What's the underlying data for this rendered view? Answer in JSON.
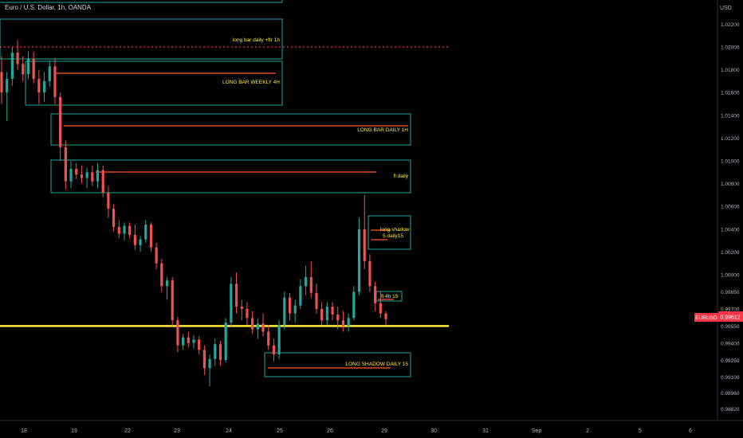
{
  "header": {
    "title": "Euro / U.S. Dollar, 1h, OANDA"
  },
  "chart_data": {
    "type": "candlestick",
    "symbol": "EURUSD",
    "last_price": 0.99612,
    "price_axis": {
      "unit": "USD",
      "ticks": [
        "1.02200",
        "1.02000",
        "1.01800",
        "1.01600",
        "1.01400",
        "1.01200",
        "1.01000",
        "1.00800",
        "1.00600",
        "1.00400",
        "1.00200",
        "1.00000",
        "0.99850",
        "0.99700",
        "0.99550",
        "0.99400",
        "0.99250",
        "0.99100",
        "0.98960",
        "0.98820"
      ]
    },
    "time_axis": {
      "labels": [
        "18",
        "19",
        "22",
        "23",
        "24",
        "25",
        "26",
        "29",
        "30",
        "31",
        "Sep",
        "2",
        "5",
        "6"
      ]
    },
    "zones": [
      {
        "label": "long bar daily +ftr 1h",
        "color": "#26a69a"
      },
      {
        "label": "LONG BAR WEEKLY 4H",
        "color": "#26a69a"
      },
      {
        "label": "LONG BAR DAILY 1H",
        "color": "#26a69a"
      },
      {
        "label": "fl daily",
        "color": "#26a69a"
      },
      {
        "label": "long shadow\n5    daily15",
        "color": "#26a69a"
      },
      {
        "label": "fl 4h 15",
        "color": "#26a69a"
      },
      {
        "label": "LONG SHADOW DAILY 15",
        "color": "#26a69a"
      }
    ],
    "support_line": {
      "price": 0.9955,
      "color": "#ffeb3b"
    },
    "resistance_dotted": {
      "price": 1.02,
      "color": "#f23645"
    },
    "colors": {
      "up": "#26a69a",
      "down": "#ef5350",
      "level": "#ff5722",
      "price_tag": "#f23645"
    },
    "candles": [
      [
        1.0178,
        1.0192,
        1.015,
        1.016
      ],
      [
        1.016,
        1.0178,
        1.0135,
        1.0172
      ],
      [
        1.0172,
        1.02,
        1.0166,
        1.0195
      ],
      [
        1.0195,
        1.0206,
        1.018,
        1.0185
      ],
      [
        1.0185,
        1.0192,
        1.017,
        1.0176
      ],
      [
        1.0176,
        1.0196,
        1.0172,
        1.019
      ],
      [
        1.019,
        1.0196,
        1.0168,
        1.0172
      ],
      [
        1.0172,
        1.018,
        1.015,
        1.016
      ],
      [
        1.016,
        1.0178,
        1.0152,
        1.017
      ],
      [
        1.017,
        1.0188,
        1.0165,
        1.0183
      ],
      [
        1.0183,
        1.019,
        1.015,
        1.0156
      ],
      [
        1.0156,
        1.016,
        1.01,
        1.0112
      ],
      [
        1.0112,
        1.0118,
        1.0075,
        1.0082
      ],
      [
        1.0082,
        1.01,
        1.0076,
        1.0093
      ],
      [
        1.0093,
        1.0098,
        1.0084,
        1.0088
      ],
      [
        1.0088,
        1.0096,
        1.008,
        1.0085
      ],
      [
        1.0085,
        1.0094,
        1.0076,
        1.009
      ],
      [
        1.009,
        1.0096,
        1.0078,
        1.0082
      ],
      [
        1.0082,
        1.0098,
        1.0076,
        1.0092
      ],
      [
        1.0092,
        1.0096,
        1.0068,
        1.0072
      ],
      [
        1.0072,
        1.0078,
        1.005,
        1.0058
      ],
      [
        1.0058,
        1.0062,
        1.0038,
        1.0042
      ],
      [
        1.0042,
        1.0048,
        1.0032,
        1.0036
      ],
      [
        1.0036,
        1.0046,
        1.003,
        1.0043
      ],
      [
        1.0043,
        1.0046,
        1.0032,
        1.0035
      ],
      [
        1.0035,
        1.0044,
        1.0022,
        1.0026
      ],
      [
        1.0026,
        1.0034,
        1.002,
        1.0031
      ],
      [
        1.0031,
        1.0048,
        1.0028,
        1.0044
      ],
      [
        1.0044,
        1.0046,
        1.002,
        1.0024
      ],
      [
        1.0024,
        1.0028,
        1.0005,
        1.001
      ],
      [
        1.001,
        1.0014,
        0.9985,
        0.999
      ],
      [
        0.999,
        0.9998,
        0.9978,
        0.9995
      ],
      [
        0.9995,
        0.9998,
        0.9955,
        0.996
      ],
      [
        0.996,
        0.9963,
        0.9932,
        0.9938
      ],
      [
        0.9938,
        0.9948,
        0.9934,
        0.9945
      ],
      [
        0.9945,
        0.995,
        0.9936,
        0.994
      ],
      [
        0.994,
        0.9947,
        0.9935,
        0.9943
      ],
      [
        0.9943,
        0.9946,
        0.993,
        0.9934
      ],
      [
        0.9934,
        0.9938,
        0.9912,
        0.9918
      ],
      [
        0.9918,
        0.993,
        0.9902,
        0.9926
      ],
      [
        0.9926,
        0.9944,
        0.992,
        0.9939
      ],
      [
        0.9939,
        0.9942,
        0.992,
        0.9925
      ],
      [
        0.9925,
        0.9962,
        0.9923,
        0.9958
      ],
      [
        0.9958,
        0.9998,
        0.9955,
        0.9992
      ],
      [
        0.9992,
        1.0002,
        0.9966,
        0.9972
      ],
      [
        0.9972,
        0.9978,
        0.996,
        0.997
      ],
      [
        0.997,
        0.9976,
        0.9956,
        0.9962
      ],
      [
        0.9962,
        0.9968,
        0.9948,
        0.9952
      ],
      [
        0.9952,
        0.9962,
        0.9944,
        0.9957
      ],
      [
        0.9957,
        0.9966,
        0.9946,
        0.995
      ],
      [
        0.995,
        0.9956,
        0.9934,
        0.9938
      ],
      [
        0.9938,
        0.9944,
        0.9924,
        0.993
      ],
      [
        0.993,
        0.996,
        0.9926,
        0.9956
      ],
      [
        0.9956,
        0.9985,
        0.9952,
        0.998
      ],
      [
        0.998,
        0.9984,
        0.996,
        0.9966
      ],
      [
        0.9966,
        0.9978,
        0.9958,
        0.9973
      ],
      [
        0.9973,
        0.9996,
        0.997,
        0.999
      ],
      [
        0.999,
        1.0008,
        0.9982,
        0.9998
      ],
      [
        0.9998,
        1.0012,
        0.998,
        0.9984
      ],
      [
        0.9984,
        0.9992,
        0.9966,
        0.997
      ],
      [
        0.997,
        0.9976,
        0.9956,
        0.996
      ],
      [
        0.996,
        0.9976,
        0.9956,
        0.9972
      ],
      [
        0.9972,
        0.9976,
        0.996,
        0.9965
      ],
      [
        0.9965,
        0.9972,
        0.9952,
        0.996
      ],
      [
        0.996,
        0.9968,
        0.995,
        0.9955
      ],
      [
        0.9955,
        0.9966,
        0.995,
        0.9962
      ],
      [
        0.9962,
        0.999,
        0.996,
        0.9985
      ],
      [
        0.9985,
        1.005,
        0.9982,
        1.004
      ],
      [
        1.004,
        1.007,
        1.0005,
        1.0012
      ],
      [
        1.0012,
        1.0018,
        0.9985,
        0.999
      ],
      [
        0.999,
        0.9994,
        0.9968,
        0.9975
      ],
      [
        0.9975,
        0.9985,
        0.9962,
        0.9966
      ],
      [
        0.9966,
        0.9968,
        0.9956,
        0.9961
      ]
    ]
  }
}
